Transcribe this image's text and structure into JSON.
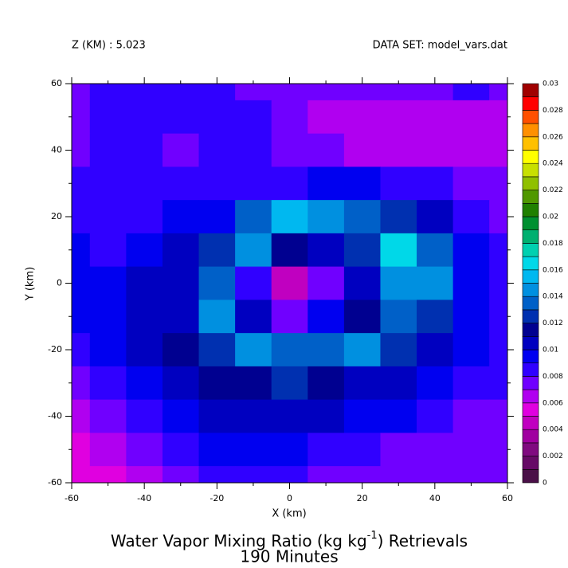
{
  "chart_data": {
    "type": "contourf",
    "header_left": "Z (KM) : 5.023",
    "header_right": "DATA SET: model_vars.dat",
    "title": [
      "Water Vapor Mixing Ratio (kg kg",
      "-1",
      ") Retrievals"
    ],
    "subtitle": "190 Minutes",
    "xlabel": "X (km)",
    "ylabel": "Y (km)",
    "xlim": [
      -60,
      60
    ],
    "ylim": [
      -60,
      60
    ],
    "xticks": [
      -60,
      -40,
      -20,
      0,
      20,
      40,
      60
    ],
    "yticks": [
      -60,
      -40,
      -20,
      0,
      20,
      40,
      60
    ],
    "xminor": [
      -50,
      -30,
      -10,
      10,
      30,
      50
    ],
    "yminor": [
      -50,
      -30,
      -10,
      10,
      30,
      50
    ],
    "x": [
      -60,
      -50,
      -40,
      -30,
      -20,
      -10,
      0,
      10,
      20,
      30,
      40,
      50,
      60
    ],
    "y": [
      60,
      50,
      40,
      30,
      20,
      10,
      0,
      -10,
      -20,
      -30,
      -40,
      -50,
      -60
    ],
    "z": [
      [
        0.007,
        0.008,
        0.008,
        0.008,
        0.008,
        0.007,
        0.007,
        0.007,
        0.007,
        0.007,
        0.007,
        0.008,
        0.007
      ],
      [
        0.007,
        0.008,
        0.008,
        0.008,
        0.008,
        0.008,
        0.007,
        0.006,
        0.006,
        0.006,
        0.006,
        0.006,
        0.006
      ],
      [
        0.007,
        0.008,
        0.008,
        0.007,
        0.008,
        0.008,
        0.007,
        0.007,
        0.006,
        0.006,
        0.006,
        0.006,
        0.006
      ],
      [
        0.008,
        0.008,
        0.008,
        0.008,
        0.008,
        0.008,
        0.008,
        0.009,
        0.009,
        0.008,
        0.008,
        0.007,
        0.007
      ],
      [
        0.008,
        0.008,
        0.008,
        0.009,
        0.009,
        0.013,
        0.015,
        0.014,
        0.013,
        0.012,
        0.01,
        0.008,
        0.007
      ],
      [
        0.009,
        0.008,
        0.009,
        0.01,
        0.012,
        0.014,
        0.011,
        0.01,
        0.012,
        0.016,
        0.013,
        0.009,
        0.008
      ],
      [
        0.009,
        0.009,
        0.01,
        0.01,
        0.013,
        0.008,
        0.004,
        0.007,
        0.01,
        0.014,
        0.014,
        0.009,
        0.008
      ],
      [
        0.009,
        0.009,
        0.01,
        0.01,
        0.014,
        0.01,
        0.007,
        0.009,
        0.011,
        0.013,
        0.012,
        0.009,
        0.008
      ],
      [
        0.008,
        0.009,
        0.01,
        0.011,
        0.012,
        0.014,
        0.013,
        0.013,
        0.014,
        0.012,
        0.01,
        0.009,
        0.008
      ],
      [
        0.007,
        0.008,
        0.009,
        0.01,
        0.011,
        0.011,
        0.012,
        0.011,
        0.01,
        0.01,
        0.009,
        0.008,
        0.008
      ],
      [
        0.006,
        0.007,
        0.008,
        0.009,
        0.01,
        0.01,
        0.01,
        0.01,
        0.009,
        0.009,
        0.008,
        0.007,
        0.007
      ],
      [
        0.005,
        0.006,
        0.007,
        0.008,
        0.009,
        0.009,
        0.009,
        0.008,
        0.008,
        0.007,
        0.007,
        0.007,
        0.007
      ],
      [
        0.005,
        0.005,
        0.006,
        0.007,
        0.008,
        0.008,
        0.008,
        0.007,
        0.007,
        0.007,
        0.007,
        0.007,
        0.007
      ]
    ],
    "colorbar": {
      "levels": [
        0,
        0.001,
        0.002,
        0.003,
        0.004,
        0.005,
        0.006,
        0.007,
        0.008,
        0.009,
        0.01,
        0.011,
        0.012,
        0.013,
        0.014,
        0.015,
        0.016,
        0.017,
        0.018,
        0.019,
        0.02,
        0.021,
        0.022,
        0.023,
        0.024,
        0.025,
        0.026,
        0.027,
        0.028,
        0.029,
        0.03
      ],
      "colors": [
        "#4a1048",
        "#660a66",
        "#800a80",
        "#a000a0",
        "#c000c0",
        "#e000e0",
        "#b000f0",
        "#7000ff",
        "#3000ff",
        "#0000f0",
        "#0000c0",
        "#000090",
        "#0030b0",
        "#0060c8",
        "#0090e0",
        "#00b8f0",
        "#00d8e8",
        "#00d0b0",
        "#00b070",
        "#009030",
        "#208000",
        "#509800",
        "#90c000",
        "#c8e000",
        "#ffff00",
        "#ffc000",
        "#ff9000",
        "#ff5000",
        "#ff0000",
        "#a00000"
      ],
      "ticks": [
        0,
        0.002,
        0.004,
        0.006,
        0.008,
        0.01,
        0.012,
        0.014,
        0.016,
        0.018,
        0.02,
        0.022,
        0.024,
        0.026,
        0.028,
        0.03
      ]
    }
  }
}
